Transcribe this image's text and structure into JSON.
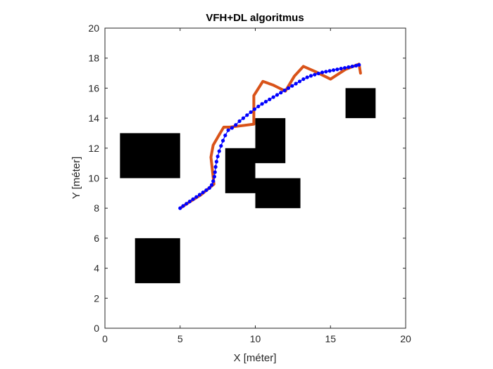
{
  "chart_data": {
    "type": "line",
    "title": "VFH+DL algoritmus",
    "xlabel": "X [méter]",
    "ylabel": "Y [méter]",
    "xlim": [
      0,
      20
    ],
    "ylim": [
      0,
      20
    ],
    "xticks": [
      0,
      5,
      10,
      15,
      20
    ],
    "yticks": [
      0,
      2,
      4,
      6,
      8,
      10,
      12,
      14,
      16,
      18,
      20
    ],
    "grid": false,
    "colors": {
      "obstacle": "#000000",
      "path_orange": "#D95319",
      "path_blue": "#0000FF"
    },
    "obstacles": [
      {
        "x": [
          1,
          5
        ],
        "y": [
          10,
          13
        ]
      },
      {
        "x": [
          2,
          5
        ],
        "y": [
          3,
          6
        ]
      },
      {
        "x": [
          8,
          10
        ],
        "y": [
          9,
          12
        ]
      },
      {
        "x": [
          10,
          12
        ],
        "y": [
          11,
          14
        ]
      },
      {
        "x": [
          10,
          13
        ],
        "y": [
          8,
          10
        ]
      },
      {
        "x": [
          16,
          18
        ],
        "y": [
          14,
          16
        ]
      }
    ],
    "series": [
      {
        "color": "#D95319",
        "style": "line",
        "x": [
          5,
          5.6,
          6.4,
          7.0,
          7.25,
          7.05,
          7.2,
          7.6,
          7.9,
          8.3,
          9.1,
          9.9,
          9.9,
          10.5,
          11.2,
          12.0,
          12.6,
          13.2,
          14.0,
          15.0,
          16.0,
          16.9,
          17.0
        ],
        "y": [
          8,
          8.4,
          8.9,
          9.4,
          9.6,
          11.4,
          12.2,
          12.9,
          13.4,
          13.4,
          13.5,
          13.6,
          15.5,
          16.45,
          16.2,
          15.8,
          16.8,
          17.45,
          17.1,
          16.6,
          17.25,
          17.6,
          17.0
        ]
      },
      {
        "color": "#0000FF",
        "style": "dots",
        "x": [
          5.0,
          5.2,
          5.42,
          5.64,
          5.86,
          6.08,
          6.3,
          6.52,
          6.74,
          6.95,
          7.1,
          7.2,
          7.28,
          7.32,
          7.36,
          7.42,
          7.5,
          7.6,
          7.72,
          7.85,
          8.0,
          8.2,
          8.45,
          8.7,
          8.95,
          9.2,
          9.45,
          9.7,
          9.95,
          10.2,
          10.45,
          10.7,
          10.95,
          11.2,
          11.45,
          11.7,
          11.95,
          12.2,
          12.45,
          12.7,
          12.95,
          13.2,
          13.45,
          13.7,
          13.95,
          14.2,
          14.45,
          14.7,
          14.95,
          15.2,
          15.45,
          15.7,
          15.95,
          16.2,
          16.45,
          16.7,
          16.9
        ],
        "y": [
          8.0,
          8.15,
          8.3,
          8.45,
          8.6,
          8.75,
          8.9,
          9.05,
          9.2,
          9.35,
          9.55,
          9.8,
          10.1,
          10.4,
          10.75,
          11.1,
          11.45,
          11.8,
          12.15,
          12.5,
          12.85,
          13.2,
          13.35,
          13.55,
          13.8,
          14.0,
          14.2,
          14.4,
          14.6,
          14.78,
          14.95,
          15.1,
          15.25,
          15.4,
          15.55,
          15.7,
          15.85,
          16.0,
          16.15,
          16.3,
          16.45,
          16.6,
          16.72,
          16.82,
          16.9,
          16.98,
          17.05,
          17.1,
          17.15,
          17.2,
          17.25,
          17.3,
          17.35,
          17.4,
          17.45,
          17.5,
          17.55
        ]
      }
    ]
  }
}
